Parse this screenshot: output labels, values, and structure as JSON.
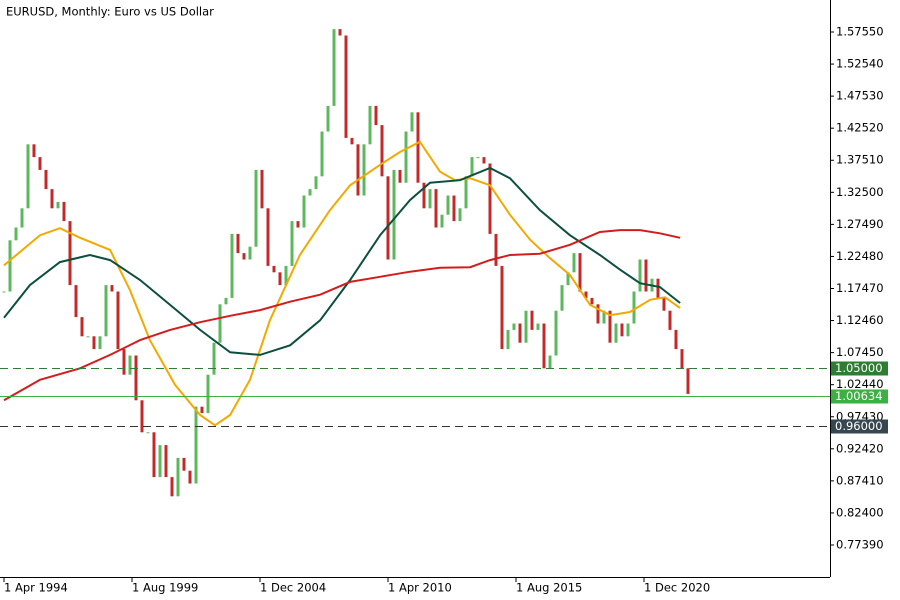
{
  "chart_data": {
    "type": "candlestick",
    "title": "EURUSD, Monthly:  Euro vs US Dollar",
    "up_color": "#5cb85c",
    "down_color": "#c62828",
    "x": [
      1994.25,
      1994.5,
      1994.75,
      1995,
      1995.25,
      1995.5,
      1995.75,
      1996,
      1996.25,
      1996.5,
      1996.75,
      1997,
      1997.25,
      1997.5,
      1997.75,
      1998,
      1998.25,
      1998.5,
      1998.75,
      1999,
      1999.25,
      1999.5,
      1999.75,
      2000,
      2000.25,
      2000.5,
      2000.75,
      2001,
      2001.25,
      2001.5,
      2001.75,
      2002,
      2002.25,
      2002.5,
      2002.75,
      2003,
      2003.25,
      2003.5,
      2003.75,
      2004,
      2004.25,
      2004.5,
      2004.75,
      2005,
      2005.25,
      2005.5,
      2005.75,
      2006,
      2006.25,
      2006.5,
      2006.75,
      2007,
      2007.25,
      2007.5,
      2007.75,
      2008,
      2008.25,
      2008.5,
      2008.75,
      2009,
      2009.25,
      2009.5,
      2009.75,
      2010,
      2010.25,
      2010.5,
      2010.75,
      2011,
      2011.25,
      2011.5,
      2011.75,
      2012,
      2012.25,
      2012.5,
      2012.75,
      2013,
      2013.25,
      2013.5,
      2013.75,
      2014,
      2014.25,
      2014.5,
      2014.75,
      2015,
      2015.25,
      2015.5,
      2015.75,
      2016,
      2016.25,
      2016.5,
      2016.75,
      2017,
      2017.25,
      2017.5,
      2017.75,
      2018,
      2018.25,
      2018.5,
      2018.75,
      2019,
      2019.25,
      2019.5,
      2019.75,
      2020,
      2020.25,
      2020.5,
      2020.75,
      2021,
      2021.25,
      2021.5,
      2021.75,
      2022,
      2022.25,
      2022.5,
      2022.75
    ],
    "values": [
      1.17,
      1.25,
      1.27,
      1.3,
      1.4,
      1.38,
      1.36,
      1.33,
      1.3,
      1.31,
      1.28,
      1.18,
      1.13,
      1.1,
      1.1,
      1.08,
      1.1,
      1.18,
      1.17,
      1.08,
      1.04,
      1.07,
      1.0,
      0.95,
      0.95,
      0.88,
      0.93,
      0.88,
      0.85,
      0.91,
      0.89,
      0.87,
      0.99,
      0.98,
      1.04,
      1.09,
      1.15,
      1.16,
      1.26,
      1.23,
      1.22,
      1.24,
      1.36,
      1.3,
      1.21,
      1.2,
      1.18,
      1.21,
      1.28,
      1.27,
      1.32,
      1.33,
      1.35,
      1.42,
      1.46,
      1.58,
      1.57,
      1.41,
      1.4,
      1.32,
      1.4,
      1.46,
      1.43,
      1.35,
      1.22,
      1.36,
      1.34,
      1.42,
      1.45,
      1.34,
      1.3,
      1.33,
      1.27,
      1.29,
      1.32,
      1.28,
      1.3,
      1.35,
      1.38,
      1.38,
      1.37,
      1.26,
      1.21,
      1.08,
      1.11,
      1.12,
      1.09,
      1.14,
      1.11,
      1.12,
      1.05,
      1.07,
      1.14,
      1.18,
      1.2,
      1.23,
      1.17,
      1.16,
      1.15,
      1.12,
      1.14,
      1.09,
      1.12,
      1.1,
      1.12,
      1.17,
      1.22,
      1.17,
      1.19,
      1.16,
      1.14,
      1.11,
      1.08,
      1.05,
      1.01
    ],
    "lines": [
      {
        "color": "#f2a900",
        "x": [
          1994.25,
          1995.75,
          1996.58,
          1997.42,
          1998.67,
          1999.5,
          2000.33,
          2001.38,
          2002.42,
          2003.04,
          2003.67,
          2004.5,
          2005.33,
          2006.58,
          2007.83,
          2008.67,
          2009.92,
          2010.75,
          2011.58,
          2012.42,
          2013.04,
          2013.67,
          2014.5,
          2015.33,
          2016.17,
          2017,
          2017.83,
          2018.67,
          2019.5,
          2020.33,
          2021.17,
          2021.79,
          2022.42
        ],
        "values": [
          1.211,
          1.258,
          1.269,
          1.254,
          1.235,
          1.172,
          1.094,
          1.024,
          0.977,
          0.961,
          0.977,
          1.032,
          1.125,
          1.227,
          1.297,
          1.336,
          1.368,
          1.388,
          1.404,
          1.357,
          1.344,
          1.347,
          1.336,
          1.29,
          1.251,
          1.222,
          1.196,
          1.149,
          1.133,
          1.138,
          1.157,
          1.161,
          1.144
        ]
      },
      {
        "color": "#0d4f3f",
        "x": [
          1994.25,
          1995.33,
          1996.58,
          1997.83,
          1998.67,
          1999.92,
          2001.17,
          2002.42,
          2003.67,
          2004.92,
          2006.17,
          2007.42,
          2008.67,
          2009.92,
          2011.17,
          2012,
          2013.25,
          2014.5,
          2015.33,
          2016.58,
          2017.83,
          2019.08,
          2019.92,
          2020.75,
          2021.58,
          2022.42
        ],
        "values": [
          1.129,
          1.18,
          1.216,
          1.227,
          1.219,
          1.188,
          1.149,
          1.11,
          1.075,
          1.071,
          1.086,
          1.125,
          1.188,
          1.258,
          1.313,
          1.34,
          1.344,
          1.363,
          1.347,
          1.297,
          1.258,
          1.227,
          1.204,
          1.183,
          1.177,
          1.152
        ]
      },
      {
        "color": "#d41c1c",
        "x": [
          1994.25,
          1995.75,
          1997.42,
          1998.67,
          1999.92,
          2001.17,
          2002.42,
          2003.67,
          2004.92,
          2006.17,
          2007.42,
          2008.67,
          2009.92,
          2011.17,
          2012.42,
          2013.67,
          2014.5,
          2015.33,
          2016.58,
          2017.83,
          2019.08,
          2019.92,
          2020.75,
          2021.58,
          2022.42
        ],
        "values": [
          1.0,
          1.032,
          1.05,
          1.071,
          1.094,
          1.11,
          1.122,
          1.132,
          1.141,
          1.154,
          1.165,
          1.185,
          1.193,
          1.201,
          1.207,
          1.208,
          1.219,
          1.227,
          1.229,
          1.243,
          1.263,
          1.266,
          1.266,
          1.261,
          1.254
        ]
      }
    ],
    "levels": [
      {
        "value": 1.05,
        "label": "1.05000",
        "color": "#2e7d32",
        "box": "#2e7d32",
        "dash": true
      },
      {
        "value": 1.00634,
        "label": "1.00634",
        "color": "#3cb043",
        "box": "#3cb043",
        "dash": false
      },
      {
        "value": 0.96,
        "label": "0.96000",
        "color": "#333333",
        "box": "#37474f",
        "dash": true
      }
    ],
    "xlim": [
      1994.083,
      2028.667
    ],
    "xticks": [
      {
        "value": 1994.25,
        "label": "1 Apr 1994"
      },
      {
        "value": 1999.583,
        "label": "1 Aug 1999"
      },
      {
        "value": 2004.917,
        "label": "1 Dec 2004"
      },
      {
        "value": 2010.25,
        "label": "1 Apr 2010"
      },
      {
        "value": 2015.583,
        "label": "1 Aug 2015"
      },
      {
        "value": 2020.917,
        "label": "1 Dec 2020"
      }
    ],
    "ylim": [
      0.7239,
      1.6255
    ],
    "yticks": [
      {
        "value": 0.7739,
        "label": "0.77390"
      },
      {
        "value": 0.824,
        "label": "0.82400"
      },
      {
        "value": 0.8741,
        "label": "0.87410"
      },
      {
        "value": 0.9242,
        "label": "0.92420"
      },
      {
        "value": 0.9743,
        "label": "0.97430"
      },
      {
        "value": 1.0244,
        "label": "1.02440"
      },
      {
        "value": 1.0745,
        "label": "1.07450"
      },
      {
        "value": 1.1246,
        "label": "1.12460"
      },
      {
        "value": 1.1747,
        "label": "1.17470"
      },
      {
        "value": 1.2248,
        "label": "1.22480"
      },
      {
        "value": 1.2749,
        "label": "1.27490"
      },
      {
        "value": 1.325,
        "label": "1.32500"
      },
      {
        "value": 1.3751,
        "label": "1.37510"
      },
      {
        "value": 1.4252,
        "label": "1.42520"
      },
      {
        "value": 1.4753,
        "label": "1.47530"
      },
      {
        "value": 1.5254,
        "label": "1.52540"
      },
      {
        "value": 1.5755,
        "label": "1.57550"
      }
    ]
  }
}
